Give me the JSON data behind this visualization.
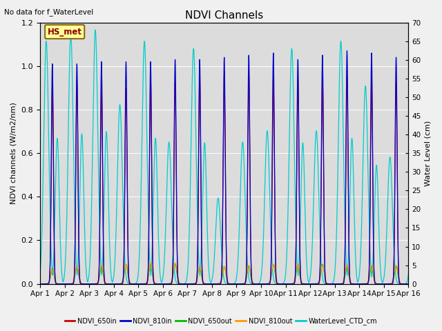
{
  "title": "NDVI Channels",
  "ylabel_left": "NDVI channels (W/m2/nm)",
  "ylabel_right": "Water Level (cm)",
  "top_left_text": "No data for f_WaterLevel",
  "box_label": "HS_met",
  "ylim_left": [
    0,
    1.2
  ],
  "ylim_right": [
    0,
    70
  ],
  "yticks_right": [
    0,
    5,
    10,
    15,
    20,
    25,
    30,
    35,
    40,
    45,
    50,
    55,
    60,
    65,
    70
  ],
  "background_color": "#dcdcdc",
  "fig_background": "#f0f0f0",
  "colors": {
    "NDVI_650in": "#cc0000",
    "NDVI_810in": "#0000cc",
    "NDVI_650out": "#00bb00",
    "NDVI_810out": "#ff9900",
    "WaterLevel_CTD_cm": "#00cccc"
  },
  "legend_labels": [
    "NDVI_650in",
    "NDVI_810in",
    "NDVI_650out",
    "NDVI_810out",
    "WaterLevel_CTD_cm"
  ],
  "tick_labels": [
    "Apr 1",
    "Apr 2",
    "Apr 3",
    "Apr 4",
    "Apr 5",
    "Apr 6",
    "Apr 7",
    "Apr 8",
    "Apr 9",
    "Apr 10",
    "Apr 11",
    "Apr 12",
    "Apr 13",
    "Apr 14",
    "Apr 15",
    "Apr 16"
  ],
  "ndvi_650in_peaks": [
    0.92,
    0.93,
    0.93,
    0.9,
    0.95,
    0.93,
    0.96,
    0.97,
    0.97,
    0.95,
    0.94,
    0.96,
    0.96,
    0.95,
    0.93,
    1.08
  ],
  "ndvi_810in_peaks": [
    1.01,
    1.01,
    1.02,
    1.02,
    1.02,
    1.03,
    1.03,
    1.04,
    1.05,
    1.06,
    1.03,
    1.05,
    1.07,
    1.06,
    1.04,
    1.08
  ],
  "ndvi_650out_peaks": [
    0.07,
    0.08,
    0.08,
    0.09,
    0.09,
    0.09,
    0.08,
    0.08,
    0.08,
    0.09,
    0.09,
    0.09,
    0.08,
    0.08,
    0.08,
    0.08
  ],
  "ndvi_810out_peaks": [
    0.065,
    0.08,
    0.085,
    0.09,
    0.095,
    0.095,
    0.08,
    0.08,
    0.085,
    0.09,
    0.09,
    0.085,
    0.085,
    0.085,
    0.085,
    0.09
  ],
  "water_peaks": [
    65,
    67,
    68,
    48,
    65,
    38,
    63,
    23,
    38,
    41,
    63,
    41,
    65,
    53,
    34,
    62
  ]
}
